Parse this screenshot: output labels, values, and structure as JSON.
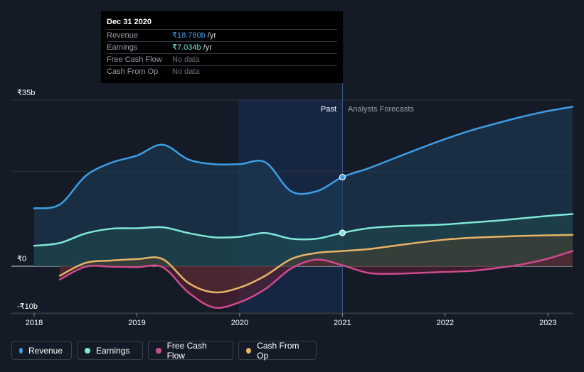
{
  "tooltip": {
    "date": "Dec 31 2020",
    "rows": [
      {
        "name": "Revenue",
        "value": "₹18.780b",
        "unit": "/yr",
        "color": "#3c9ee6"
      },
      {
        "name": "Earnings",
        "value": "₹7.034b",
        "unit": "/yr",
        "color": "#7fe8d8"
      },
      {
        "name": "Free Cash Flow",
        "value": "No data",
        "unit": ""
      },
      {
        "name": "Cash From Op",
        "value": "No data",
        "unit": ""
      }
    ]
  },
  "labels": {
    "past": "Past",
    "forecast": "Analysts Forecasts"
  },
  "legend": [
    {
      "label": "Revenue",
      "color": "#3c9ee6"
    },
    {
      "label": "Earnings",
      "color": "#7fe8d8"
    },
    {
      "label": "Free Cash Flow",
      "color": "#cf4a8e"
    },
    {
      "label": "Cash From Op",
      "color": "#e8b466"
    }
  ],
  "chart_data": {
    "type": "line",
    "y_ticks": [
      {
        "value": 35,
        "label": "₹35b"
      },
      {
        "value": 0,
        "label": "₹0"
      },
      {
        "value": -10,
        "label": "-₹10b"
      }
    ],
    "ylim": [
      -10,
      35
    ],
    "xlim": [
      2018,
      2023.24
    ],
    "x_ticks": [
      {
        "value": 2018,
        "label": "2018"
      },
      {
        "value": 2019,
        "label": "2019"
      },
      {
        "value": 2020,
        "label": "2020"
      },
      {
        "value": 2021,
        "label": "2021"
      },
      {
        "value": 2022,
        "label": "2022"
      },
      {
        "value": 2023,
        "label": "2023"
      }
    ],
    "split_x": 2021,
    "highlight_start": 2019.99,
    "series": [
      {
        "name": "Revenue",
        "color": "#3c9ee6",
        "fill": "#1c3a57",
        "x": [
          2018,
          2018.25,
          2018.5,
          2018.75,
          2019,
          2019.25,
          2019.5,
          2019.75,
          2020,
          2020.25,
          2020.5,
          2020.75,
          2021,
          2021.25,
          2021.5,
          2021.75,
          2022,
          2022.25,
          2022.5,
          2022.75,
          2023,
          2023.24
        ],
        "y": [
          12.2,
          13,
          19,
          21.8,
          23.3,
          25.6,
          22.5,
          21.5,
          21.5,
          21.9,
          15.8,
          15.8,
          18.78,
          20.6,
          22.7,
          24.8,
          26.8,
          28.6,
          30.1,
          31.5,
          32.7,
          33.6
        ]
      },
      {
        "name": "Earnings",
        "color": "#7fe8d8",
        "fill": "#1c4a4e",
        "x": [
          2018,
          2018.25,
          2018.5,
          2018.75,
          2019,
          2019.25,
          2019.5,
          2019.75,
          2020,
          2020.25,
          2020.5,
          2020.75,
          2021,
          2021.25,
          2021.5,
          2021.75,
          2022,
          2022.25,
          2022.5,
          2022.75,
          2023,
          2023.24
        ],
        "y": [
          4.3,
          4.9,
          6.9,
          7.9,
          8,
          8.2,
          7,
          6.1,
          6.2,
          7,
          5.8,
          5.8,
          7.03,
          8,
          8.4,
          8.6,
          8.8,
          9.2,
          9.6,
          10.1,
          10.6,
          11
        ]
      },
      {
        "name": "Cash From Op",
        "color": "#e8b466",
        "fill": "#4a3f2e",
        "x": [
          2018.25,
          2018.5,
          2018.75,
          2019,
          2019.25,
          2019.5,
          2019.75,
          2020,
          2020.25,
          2020.5,
          2020.75,
          2021,
          2021.25,
          2021.5,
          2021.75,
          2022,
          2022.25,
          2022.5,
          2022.75,
          2023,
          2023.24
        ],
        "y": [
          -2,
          0.7,
          1.2,
          1.5,
          1.5,
          -3.5,
          -5.5,
          -4.5,
          -2,
          1.5,
          2.8,
          3.2,
          3.6,
          4.3,
          5,
          5.6,
          6,
          6.2,
          6.4,
          6.5,
          6.6
        ]
      },
      {
        "name": "Free Cash Flow",
        "color": "#cf4a8e",
        "fill": "#5a2133",
        "x": [
          2018.25,
          2018.5,
          2018.75,
          2019,
          2019.25,
          2019.5,
          2019.75,
          2020,
          2020.25,
          2020.5,
          2020.75,
          2021,
          2021.25,
          2021.5,
          2021.75,
          2022,
          2022.25,
          2022.5,
          2022.75,
          2023,
          2023.24
        ],
        "y": [
          -2.8,
          -0.1,
          -0.1,
          -0.2,
          -0.2,
          -5.5,
          -8.7,
          -7.6,
          -4.8,
          -0.5,
          1.4,
          0.2,
          -1.4,
          -1.6,
          -1.4,
          -1.2,
          -1,
          -0.4,
          0.4,
          1.6,
          3.2
        ]
      }
    ]
  }
}
